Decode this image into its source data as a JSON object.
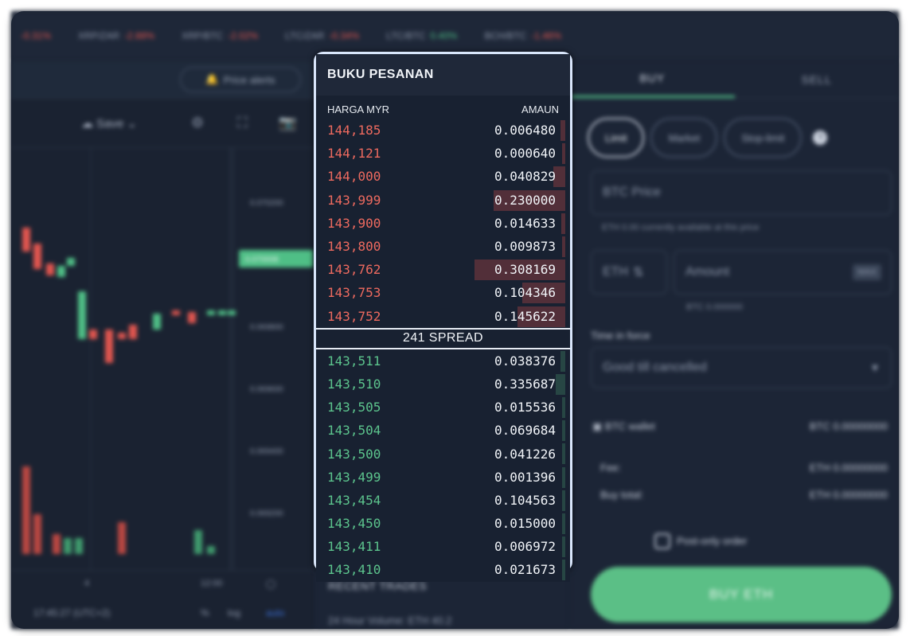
{
  "ticker": [
    {
      "pair": "",
      "change": "-0.31%",
      "dir": "neg"
    },
    {
      "pair": "XRP/ZAR",
      "change": "-2.88%",
      "dir": "neg"
    },
    {
      "pair": "XRP/BTC",
      "change": "-2.02%",
      "dir": "neg"
    },
    {
      "pair": "LTC/ZAR",
      "change": "-0.34%",
      "dir": "neg"
    },
    {
      "pair": "LTC/BTC",
      "change": "0.40%",
      "dir": "pos"
    },
    {
      "pair": "BCH/BTC",
      "change": "-1.46%",
      "dir": "neg"
    }
  ],
  "chart": {
    "price_alerts": "Price alerts",
    "save": "Save",
    "y_labels": [
      "0.070200",
      "0.069800",
      "0.069600",
      "0.069400",
      "0.069200"
    ],
    "current_price": "0.070008",
    "x_labels": [
      "4",
      "12:00"
    ],
    "time": "17:45:27 (UTC+2)",
    "pct": "%",
    "log": "log",
    "auto": "auto"
  },
  "orderbook": {
    "title": "BUKU PESANAN",
    "col_price": "HARGA MYR",
    "col_amount": "AMAUN",
    "spread": "241 SPREAD",
    "asks": [
      {
        "price": "144,185",
        "amount": "0.006480",
        "depth": 0.02
      },
      {
        "price": "144,121",
        "amount": "0.000640",
        "depth": 0.005
      },
      {
        "price": "144,000",
        "amount": "0.040829",
        "depth": 0.05
      },
      {
        "price": "143,999",
        "amount": "0.230000",
        "depth": 0.3
      },
      {
        "price": "143,900",
        "amount": "0.014633",
        "depth": 0.015
      },
      {
        "price": "143,800",
        "amount": "0.009873",
        "depth": 0.012
      },
      {
        "price": "143,762",
        "amount": "0.308169",
        "depth": 0.38
      },
      {
        "price": "143,753",
        "amount": "0.104346",
        "depth": 0.18
      },
      {
        "price": "143,752",
        "amount": "0.145622",
        "depth": 0.2
      }
    ],
    "bids": [
      {
        "price": "143,511",
        "amount": "0.038376",
        "depth": 0.02
      },
      {
        "price": "143,510",
        "amount": "0.335687",
        "depth": 0.04
      },
      {
        "price": "143,505",
        "amount": "0.015536",
        "depth": 0.01
      },
      {
        "price": "143,504",
        "amount": "0.069684",
        "depth": 0.01
      },
      {
        "price": "143,500",
        "amount": "0.041226",
        "depth": 0.01
      },
      {
        "price": "143,499",
        "amount": "0.001396",
        "depth": 0.01
      },
      {
        "price": "143,454",
        "amount": "0.104563",
        "depth": 0.01
      },
      {
        "price": "143,450",
        "amount": "0.015000",
        "depth": 0.01
      },
      {
        "price": "143,411",
        "amount": "0.006972",
        "depth": 0.01
      },
      {
        "price": "143,410",
        "amount": "0.021673",
        "depth": 0.01
      }
    ]
  },
  "recent_trades": {
    "title": "RECENT TRADES",
    "volume": "24 Hour Volume: ETH 40.2"
  },
  "trade_panel": {
    "tab_buy": "BUY",
    "tab_sell": "SELL",
    "order_types": [
      "Limit",
      "Market",
      "Stop-limit"
    ],
    "price_placeholder": "BTC  Price",
    "available_note": "ETH 0.00 currently available at this price",
    "currency": "ETH",
    "amount_placeholder": "Amount",
    "max": "MAX",
    "btc_amount": "BTC 0.000000",
    "time_in_force_label": "Time in force",
    "time_in_force_value": "Good till cancelled",
    "wallet_label": "BTC wallet",
    "wallet_value": "BTC 0.00000000",
    "fee_label": "Fee:",
    "fee_value": "ETH 0.00000000",
    "buy_total_label": "Buy total:",
    "buy_total_value": "ETH 0.00000000",
    "post_only_label": "Post-only order",
    "buy_button": "BUY ETH"
  },
  "colors": {
    "ask": "#ee6a5f",
    "bid": "#5cc48d",
    "focus_border": "#d9e6fb",
    "buy_button": "#5bbf86"
  }
}
